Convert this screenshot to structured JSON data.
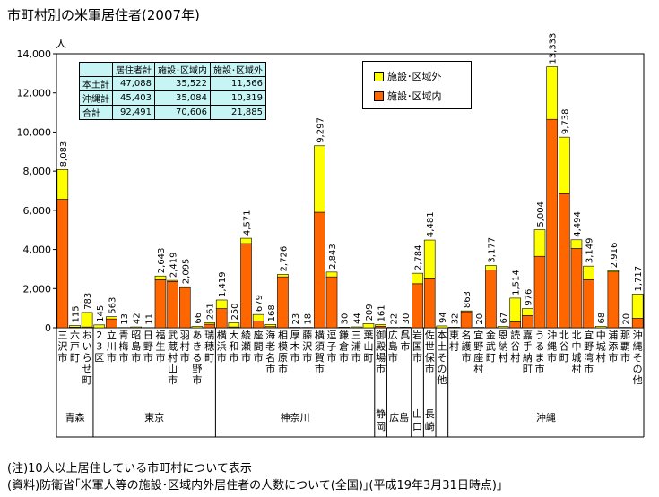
{
  "chart_data": {
    "type": "bar",
    "stacked": true,
    "title": "市町村別の米軍居住者(2007年)",
    "ylabel": "人",
    "ylim": [
      0,
      14000
    ],
    "yticks": [
      "0",
      "2,000",
      "4,000",
      "6,000",
      "8,000",
      "10,000",
      "12,000",
      "14,000"
    ],
    "series": [
      {
        "name": "施設･区域内",
        "color": "#ff6600"
      },
      {
        "name": "施設･区域外",
        "color": "#ffff00"
      }
    ],
    "categories": [
      {
        "name": "三沢市",
        "label": "三沢市",
        "total": 8083,
        "total_label": "8,083",
        "inside": 6563
      },
      {
        "name": "六戸町",
        "label": "六戸町",
        "total": 115,
        "total_label": "115",
        "inside": 30
      },
      {
        "name": "おいらせ町",
        "label": "おいらせ町",
        "total": 783,
        "total_label": "783",
        "inside": 40
      },
      {
        "name": "23区",
        "label": "23区",
        "total": 145,
        "total_label": "145",
        "inside": 0
      },
      {
        "name": "立川市",
        "label": "立川市",
        "total": 563,
        "total_label": "563",
        "inside": 450
      },
      {
        "name": "青梅市",
        "label": "青梅市",
        "total": 13,
        "total_label": "13",
        "inside": 0
      },
      {
        "name": "昭島市",
        "label": "昭島市",
        "total": 42,
        "total_label": "42",
        "inside": 0
      },
      {
        "name": "日野市",
        "label": "日野市",
        "total": 11,
        "total_label": "11",
        "inside": 0
      },
      {
        "name": "福生市",
        "label": "福生市",
        "total": 2643,
        "total_label": "2,643",
        "inside": 2450
      },
      {
        "name": "武蔵村山市",
        "label": "武蔵村山市",
        "total": 2419,
        "total_label": "2,419",
        "inside": 2360
      },
      {
        "name": "羽村市",
        "label": "羽村市",
        "total": 2095,
        "total_label": "2,095",
        "inside": 2050
      },
      {
        "name": "あきる野市",
        "label": "あきる野市",
        "total": 66,
        "total_label": "66",
        "inside": 0
      },
      {
        "name": "瑞穂町",
        "label": "瑞穂町",
        "total": 261,
        "total_label": "261",
        "inside": 180
      },
      {
        "name": "横浜市",
        "label": "横浜市",
        "total": 1419,
        "total_label": "1,419",
        "inside": 980
      },
      {
        "name": "大和市",
        "label": "大和市",
        "total": 250,
        "total_label": "250",
        "inside": 40
      },
      {
        "name": "綾瀬市",
        "label": "綾瀬市",
        "total": 4571,
        "total_label": "4,571",
        "inside": 4300
      },
      {
        "name": "座間市",
        "label": "座間市",
        "total": 679,
        "total_label": "679",
        "inside": 350
      },
      {
        "name": "海老名市",
        "label": "海老名市",
        "total": 168,
        "total_label": "168",
        "inside": 60
      },
      {
        "name": "相模原市",
        "label": "相模原市",
        "total": 2726,
        "total_label": "2,726",
        "inside": 2600
      },
      {
        "name": "厚木市",
        "label": "厚木市",
        "total": 23,
        "total_label": "23",
        "inside": 0
      },
      {
        "name": "藤沢市",
        "label": "藤沢市",
        "total": 18,
        "total_label": "18",
        "inside": 0
      },
      {
        "name": "横須賀市",
        "label": "横須賀市",
        "total": 9297,
        "total_label": "9,297",
        "inside": 5900
      },
      {
        "name": "逗子市",
        "label": "逗子市",
        "total": 2843,
        "total_label": "2,843",
        "inside": 2600
      },
      {
        "name": "鎌倉市",
        "label": "鎌倉市",
        "total": 30,
        "total_label": "30",
        "inside": 0
      },
      {
        "name": "三浦市",
        "label": "三浦市",
        "total": 44,
        "total_label": "44",
        "inside": 0
      },
      {
        "name": "葉山町",
        "label": "葉山町",
        "total": 209,
        "total_label": "209",
        "inside": 0
      },
      {
        "name": "御殿場市",
        "label": "御殿場市",
        "total": 161,
        "total_label": "161",
        "inside": 80
      },
      {
        "name": "広島市",
        "label": "広島市",
        "total": 22,
        "total_label": "22",
        "inside": 0
      },
      {
        "name": "呉市",
        "label": "呉市",
        "total": 30,
        "total_label": "30",
        "inside": 0
      },
      {
        "name": "岩国市",
        "label": "岩国市",
        "total": 2784,
        "total_label": "2,784",
        "inside": 2250
      },
      {
        "name": "佐世保市",
        "label": "佐世保市",
        "total": 4481,
        "total_label": "4,481",
        "inside": 2500
      },
      {
        "name": "本土その他",
        "label": "本土その他",
        "total": 94,
        "total_label": "94",
        "inside": 0
      },
      {
        "name": "東村",
        "label": "東村",
        "total": 32,
        "total_label": "32",
        "inside": 0
      },
      {
        "name": "名護市",
        "label": "名護市",
        "total": 863,
        "total_label": "863",
        "inside": 820
      },
      {
        "name": "宜野座村",
        "label": "宜野座村",
        "total": 20,
        "total_label": "20",
        "inside": 0
      },
      {
        "name": "金武町",
        "label": "金武町",
        "total": 3177,
        "total_label": "3,177",
        "inside": 2950
      },
      {
        "name": "恩納村",
        "label": "恩納村",
        "total": 67,
        "total_label": "67",
        "inside": 0
      },
      {
        "name": "読谷村",
        "label": "読谷村",
        "total": 1514,
        "total_label": "1,514",
        "inside": 300
      },
      {
        "name": "嘉手納町",
        "label": "嘉手納町",
        "total": 976,
        "total_label": "976",
        "inside": 620
      },
      {
        "name": "うるま市",
        "label": "うるま市",
        "total": 5004,
        "total_label": "5,004",
        "inside": 3650
      },
      {
        "name": "沖縄市",
        "label": "沖縄市",
        "total": 13333,
        "total_label": "13,333",
        "inside": 10650
      },
      {
        "name": "北谷町",
        "label": "北谷町",
        "total": 9738,
        "total_label": "9,738",
        "inside": 6850
      },
      {
        "name": "北中城村",
        "label": "北中城村",
        "total": 4494,
        "total_label": "4,494",
        "inside": 4050
      },
      {
        "name": "宜野湾市",
        "label": "宜野湾市",
        "total": 3149,
        "total_label": "3,149",
        "inside": 2450
      },
      {
        "name": "中城村",
        "label": "中城村",
        "total": 68,
        "total_label": "68",
        "inside": 0
      },
      {
        "name": "浦添市",
        "label": "浦添市",
        "total": 2916,
        "total_label": "2,916",
        "inside": 2850
      },
      {
        "name": "那覇市",
        "label": "那覇市",
        "total": 20,
        "total_label": "20",
        "inside": 0
      },
      {
        "name": "沖縄その他",
        "label": "沖縄その他",
        "total": 1717,
        "total_label": "1,717",
        "inside": 480
      }
    ],
    "groups": [
      {
        "label": "青森",
        "start": 0,
        "end": 2
      },
      {
        "label": "東京",
        "start": 3,
        "end": 12
      },
      {
        "label": "神奈川",
        "start": 13,
        "end": 25
      },
      {
        "label": "静岡",
        "start": 26,
        "end": 26
      },
      {
        "label": "広島",
        "start": 27,
        "end": 28
      },
      {
        "label": "山口",
        "start": 29,
        "end": 29
      },
      {
        "label": "長崎",
        "start": 30,
        "end": 30
      },
      {
        "label": "",
        "start": 31,
        "end": 31
      },
      {
        "label": "沖縄",
        "start": 32,
        "end": 47
      }
    ],
    "summary_table": {
      "headers": [
        "",
        "居住者計",
        "施設･区域内",
        "施設･区域外"
      ],
      "rows": [
        [
          "本土計",
          "47,088",
          "35,522",
          "11,566"
        ],
        [
          "沖縄計",
          "45,403",
          "35,084",
          "10,319"
        ],
        [
          "合計",
          "92,491",
          "70,606",
          "21,885"
        ]
      ]
    },
    "legend": [
      "施設･区域外",
      "施設･区域内"
    ]
  },
  "notes": [
    "(注)10人以上居住している市町村について表示",
    "(資料)防衛省｢米軍人等の施設･区域内外居住者の人数について(全国)｣(平成19年3月31日時点)｣"
  ],
  "colors": {
    "inside": "#ff6600",
    "outside": "#ffff00",
    "table_bg": "#c7f5f5"
  }
}
